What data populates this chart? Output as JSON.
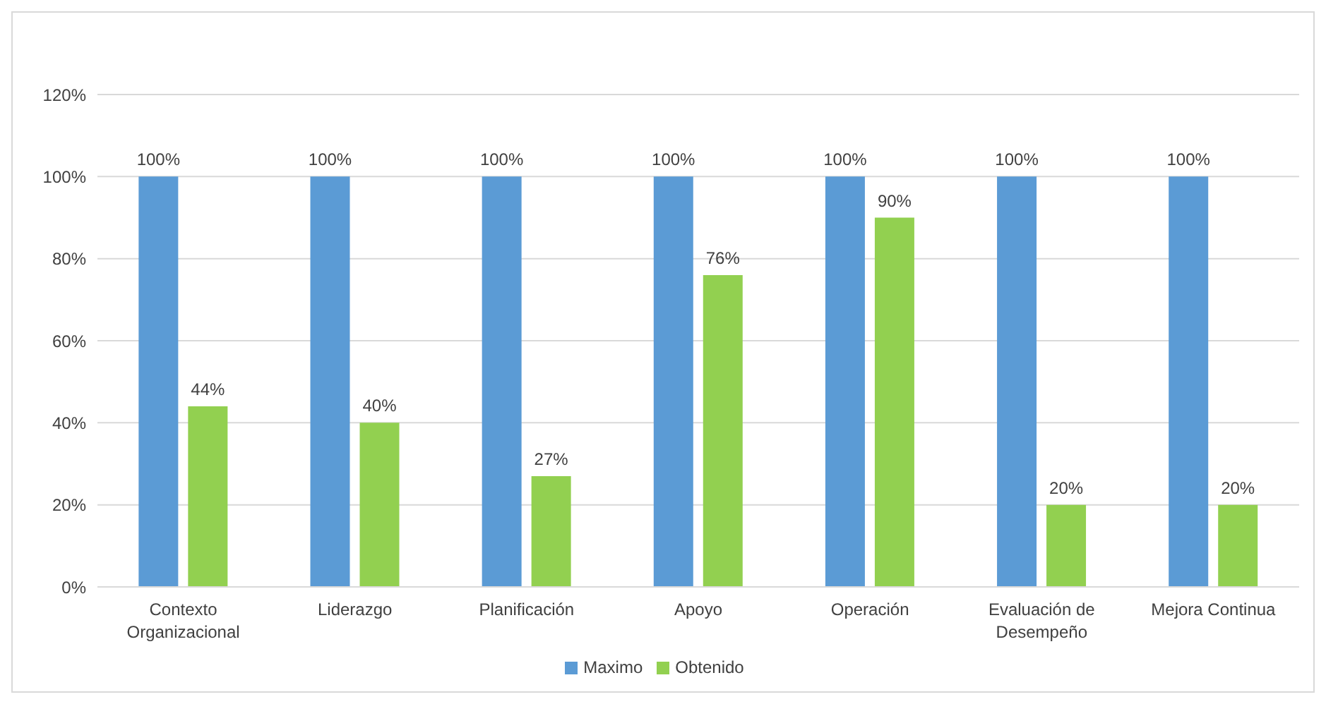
{
  "chart_data": {
    "type": "bar",
    "categories": [
      "Contexto Organizacional",
      "Liderazgo",
      "Planificación",
      "Apoyo",
      "Operación",
      "Evaluación de Desempeño",
      "Mejora Continua"
    ],
    "series": [
      {
        "name": "Maximo",
        "color": "#5b9bd5",
        "values": [
          100,
          100,
          100,
          100,
          100,
          100,
          100
        ],
        "value_labels": [
          "100%",
          "100%",
          "100%",
          "100%",
          "100%",
          "100%",
          "100%"
        ]
      },
      {
        "name": "Obtenido",
        "color": "#92d050",
        "values": [
          44,
          40,
          27,
          76,
          90,
          20,
          20
        ],
        "value_labels": [
          "44%",
          "40%",
          "27%",
          "76%",
          "90%",
          "20%",
          "20%"
        ]
      }
    ],
    "ylim": [
      0,
      120
    ],
    "yticks": [
      {
        "value": 0,
        "label": "0%"
      },
      {
        "value": 20,
        "label": "20%"
      },
      {
        "value": 40,
        "label": "40%"
      },
      {
        "value": 60,
        "label": "60%"
      },
      {
        "value": 80,
        "label": "80%"
      },
      {
        "value": 100,
        "label": "100%"
      },
      {
        "value": 120,
        "label": "120%"
      }
    ],
    "grid": "y",
    "legend": "bottom"
  }
}
